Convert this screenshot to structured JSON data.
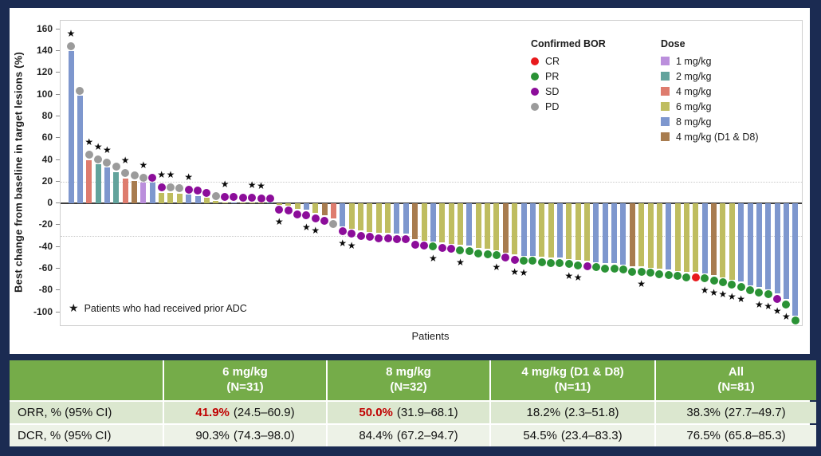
{
  "chart": {
    "y_axis_label": "Best change from baseline in target lesions (%)",
    "x_axis_label": "Patients",
    "footnote_star": "★",
    "footnote": "Patients who had received prior ADC",
    "legend_bor": {
      "title": "Confirmed BOR",
      "items": [
        {
          "code": "CR",
          "label": "CR"
        },
        {
          "code": "PR",
          "label": "PR"
        },
        {
          "code": "SD",
          "label": "SD"
        },
        {
          "code": "PD",
          "label": "PD"
        }
      ]
    },
    "legend_dose": {
      "title": "Dose",
      "items": [
        {
          "code": "1",
          "label": "1 mg/kg"
        },
        {
          "code": "2",
          "label": "2 mg/kg"
        },
        {
          "code": "4",
          "label": "4 mg/kg"
        },
        {
          "code": "6",
          "label": "6 mg/kg"
        },
        {
          "code": "8",
          "label": "8 mg/kg"
        },
        {
          "code": "4D",
          "label": "4 mg/kg (D1 & D8)"
        }
      ]
    }
  },
  "colors": {
    "background": "#1b2b52",
    "bor": {
      "CR": "#e8191c",
      "PR": "#2a9235",
      "SD": "#8c0d9a",
      "PD": "#9b9b9b"
    },
    "dose": {
      "1": "#bb8fdc",
      "2": "#62a39c",
      "4": "#de7c6e",
      "6": "#bfbd60",
      "8": "#7e97ce",
      "4D": "#a87c4f"
    },
    "table_header_bg": "#75ac49",
    "highlight": "#c00000"
  },
  "chart_data": {
    "type": "bar",
    "subtype": "waterfall",
    "title": "",
    "xlabel": "Patients",
    "ylabel": "Best change from baseline in target lesions (%)",
    "ylim": [
      -112,
      168
    ],
    "yticks": [
      160,
      140,
      120,
      100,
      80,
      60,
      40,
      20,
      0,
      -20,
      -40,
      -60,
      -80,
      -100
    ],
    "reference_lines": [
      20,
      -30
    ],
    "grid": false,
    "legend_position": "top-right",
    "patient_columns": [
      "best_change_pct",
      "dose_code",
      "confirmed_bor",
      "prior_adc"
    ],
    "patients": [
      [
        140,
        "8",
        "PD",
        1
      ],
      [
        99,
        "8",
        "PD",
        0
      ],
      [
        40,
        "4",
        "PD",
        1
      ],
      [
        36,
        "2",
        "PD",
        1
      ],
      [
        33,
        "8",
        "PD",
        1
      ],
      [
        29,
        "2",
        "PD",
        0
      ],
      [
        23,
        "4",
        "PD",
        1
      ],
      [
        21,
        "4D",
        "PD",
        0
      ],
      [
        19,
        "1",
        "PD",
        1
      ],
      [
        19,
        "8",
        "SD",
        0
      ],
      [
        10,
        "6",
        "SD",
        1
      ],
      [
        10,
        "6",
        "PD",
        1
      ],
      [
        9,
        "6",
        "PD",
        0
      ],
      [
        8,
        "8",
        "SD",
        1
      ],
      [
        7,
        "8",
        "SD",
        0
      ],
      [
        5,
        "6",
        "SD",
        0
      ],
      [
        2,
        "6",
        "PD",
        0
      ],
      [
        1,
        "6",
        "SD",
        1
      ],
      [
        1,
        "8",
        "SD",
        0
      ],
      [
        0.5,
        "6",
        "SD",
        0
      ],
      [
        0.5,
        "6",
        "SD",
        1
      ],
      [
        0,
        "6",
        "SD",
        1
      ],
      [
        0,
        "2",
        "SD",
        0
      ],
      [
        -1,
        "6",
        "SD",
        1
      ],
      [
        -2,
        "6",
        "SD",
        0
      ],
      [
        -5,
        "6",
        "SD",
        0
      ],
      [
        -6,
        "8",
        "SD",
        1
      ],
      [
        -9,
        "6",
        "SD",
        1
      ],
      [
        -11,
        "4D",
        "SD",
        0
      ],
      [
        -14,
        "4",
        "PD",
        0
      ],
      [
        -21,
        "8",
        "SD",
        1
      ],
      [
        -23,
        "6",
        "SD",
        1
      ],
      [
        -25,
        "6",
        "SD",
        0
      ],
      [
        -26,
        "6",
        "SD",
        0
      ],
      [
        -27,
        "6",
        "SD",
        0
      ],
      [
        -27,
        "6",
        "SD",
        0
      ],
      [
        -28,
        "8",
        "SD",
        0
      ],
      [
        -28,
        "8",
        "SD",
        0
      ],
      [
        -33,
        "4D",
        "SD",
        0
      ],
      [
        -34,
        "6",
        "SD",
        0
      ],
      [
        -35,
        "8",
        "PR",
        1
      ],
      [
        -36,
        "6",
        "SD",
        0
      ],
      [
        -37,
        "6",
        "SD",
        0
      ],
      [
        -38,
        "6",
        "PR",
        1
      ],
      [
        -39,
        "8",
        "PR",
        0
      ],
      [
        -41,
        "6",
        "PR",
        0
      ],
      [
        -42,
        "6",
        "PR",
        0
      ],
      [
        -43,
        "6",
        "PR",
        1
      ],
      [
        -45,
        "4D",
        "SD",
        0
      ],
      [
        -47,
        "6",
        "SD",
        1
      ],
      [
        -48,
        "8",
        "PR",
        1
      ],
      [
        -48,
        "8",
        "PR",
        0
      ],
      [
        -49,
        "6",
        "PR",
        0
      ],
      [
        -50,
        "6",
        "PR",
        0
      ],
      [
        -50,
        "8",
        "PR",
        0
      ],
      [
        -51,
        "6",
        "PR",
        1
      ],
      [
        -52,
        "6",
        "PR",
        1
      ],
      [
        -53,
        "6",
        "SD",
        0
      ],
      [
        -54,
        "8",
        "PR",
        0
      ],
      [
        -55,
        "8",
        "PR",
        0
      ],
      [
        -55,
        "8",
        "PR",
        0
      ],
      [
        -56,
        "8",
        "PR",
        0
      ],
      [
        -58,
        "4D",
        "PR",
        0
      ],
      [
        -58,
        "6",
        "PR",
        1
      ],
      [
        -59,
        "6",
        "PR",
        0
      ],
      [
        -60,
        "6",
        "PR",
        0
      ],
      [
        -61,
        "8",
        "PR",
        0
      ],
      [
        -62,
        "6",
        "PR",
        0
      ],
      [
        -63,
        "6",
        "PR",
        0
      ],
      [
        -63,
        "6",
        "CR",
        0
      ],
      [
        -64,
        "8",
        "PR",
        1
      ],
      [
        -66,
        "4D",
        "PR",
        1
      ],
      [
        -68,
        "6",
        "PR",
        1
      ],
      [
        -70,
        "6",
        "PR",
        1
      ],
      [
        -72,
        "8",
        "PR",
        1
      ],
      [
        -75,
        "8",
        "PR",
        0
      ],
      [
        -77,
        "8",
        "PR",
        1
      ],
      [
        -79,
        "8",
        "PR",
        1
      ],
      [
        -83,
        "8",
        "SD",
        1
      ],
      [
        -88,
        "8",
        "PR",
        1
      ],
      [
        -103,
        "8",
        "PR",
        0
      ]
    ]
  },
  "table": {
    "headers": [
      {
        "name": "",
        "n": ""
      },
      {
        "name": "6 mg/kg",
        "n": "(N=31)"
      },
      {
        "name": "8 mg/kg",
        "n": "(N=32)"
      },
      {
        "name": "4 mg/kg (D1 & D8)",
        "n": "(N=11)"
      },
      {
        "name": "All",
        "n": "(N=81)"
      }
    ],
    "rows": [
      {
        "label": "ORR, % (95% CI)",
        "cells": [
          {
            "pct": "41.9%",
            "ci": "(24.5–60.9)",
            "red": true
          },
          {
            "pct": "50.0%",
            "ci": "(31.9–68.1)",
            "red": true
          },
          {
            "pct": "18.2%",
            "ci": "(2.3–51.8)",
            "red": false
          },
          {
            "pct": "38.3%",
            "ci": "(27.7–49.7)",
            "red": false
          }
        ]
      },
      {
        "label": "DCR, % (95% CI)",
        "cells": [
          {
            "pct": "90.3%",
            "ci": "(74.3–98.0)",
            "red": false
          },
          {
            "pct": "84.4%",
            "ci": "(67.2–94.7)",
            "red": false
          },
          {
            "pct": "54.5%",
            "ci": "(23.4–83.3)",
            "red": false
          },
          {
            "pct": "76.5%",
            "ci": "(65.8–85.3)",
            "red": false
          }
        ]
      }
    ]
  }
}
